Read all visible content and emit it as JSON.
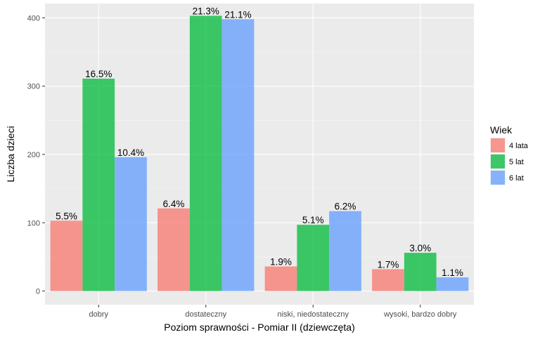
{
  "chart_data": {
    "type": "bar",
    "xlabel": "Poziom sprawności - Pomiar II (dziewczęta)",
    "ylabel": "Liczba dzieci",
    "categories": [
      "dobry",
      "dostateczny",
      "niski, niedostateczny",
      "wysoki, bardzo dobry"
    ],
    "yticks": [
      0,
      100,
      200,
      300,
      400
    ],
    "ylim": [
      -20,
      421
    ],
    "grid": true,
    "legend": {
      "title": "Wiek",
      "position": "right"
    },
    "series": [
      {
        "name": "4 lata",
        "color": "#F8766D",
        "values": [
          103,
          121,
          36,
          32
        ],
        "labels": [
          "5.5%",
          "6.4%",
          "1.9%",
          "1.7%"
        ]
      },
      {
        "name": "5 lat",
        "color": "#00BA38",
        "values": [
          311,
          403,
          97,
          56
        ],
        "labels": [
          "16.5%",
          "21.3%",
          "5.1%",
          "3.0%"
        ]
      },
      {
        "name": "6 lat",
        "color": "#619CFF",
        "values": [
          196,
          398,
          117,
          20
        ],
        "labels": [
          "10.4%",
          "21.1%",
          "6.2%",
          "1.1%"
        ]
      }
    ]
  }
}
